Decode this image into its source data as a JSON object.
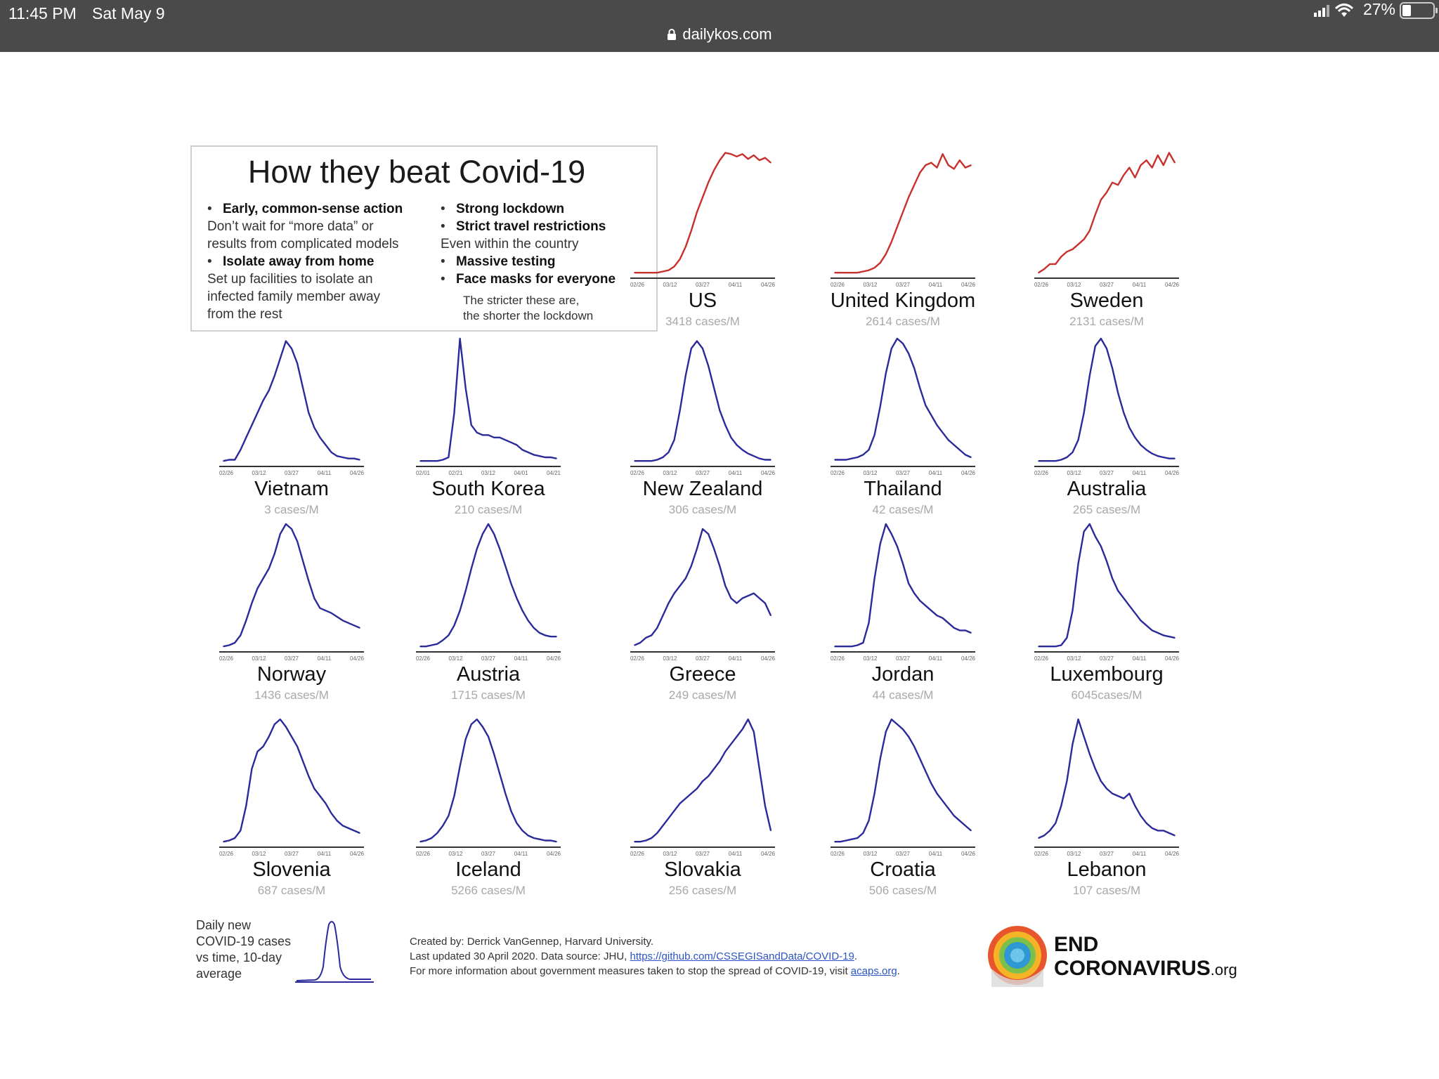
{
  "status_bar": {
    "time": "11:45 PM",
    "date": "Sat May 9",
    "url": "dailykos.com",
    "battery": "27%"
  },
  "infographic": {
    "title": "How they beat Covid-19",
    "tips": {
      "early_heading": "Early, common-sense action",
      "early_text_1": "Don’t wait for “more data” or",
      "early_text_2": "results from complicated models",
      "isolate_heading": "Isolate away from home",
      "isolate_text_1": "Set up facilities to isolate an",
      "isolate_text_2": "infected family member away",
      "isolate_text_3": "from the rest",
      "lockdown": "Strong lockdown",
      "travel": "Strict travel restrictions",
      "travel_text": "Even within the country",
      "testing": "Massive testing",
      "masks": "Face masks for everyone",
      "stricter_1": "The stricter these are,",
      "stricter_2": "the shorter the lockdown"
    },
    "legend": {
      "line1": "Daily new",
      "line2": "COVID-19 cases",
      "line3": "vs time, 10-day",
      "line4": "average"
    },
    "credits": {
      "line1": "Created by: Derrick VanGennep, Harvard University.",
      "line2_prefix": "Last updated 30 April 2020. Data source: JHU, ",
      "line2_link": "https://github.com/CSSEGISandData/COVID-19",
      "line2_suffix": ".",
      "line3_prefix": "For more information about government measures taken to stop the spread of COVID-19, visit ",
      "line3_link": "acaps.org",
      "line3_suffix": "."
    },
    "logo": {
      "line1": "END",
      "line2": "CORONAVIRUS",
      "suffix": ".org"
    },
    "colors": {
      "rising": "#c8302c",
      "beaten": "#2b2a9a"
    }
  },
  "chart_data": [
    {
      "type": "line",
      "name_label": "US",
      "cases": "3418 cases/M",
      "color": "red",
      "ticks": [
        "02/26",
        "03/12",
        "03/27",
        "04/11",
        "04/26"
      ],
      "values": [
        1,
        1,
        1,
        1,
        1,
        2,
        3,
        6,
        12,
        22,
        35,
        50,
        62,
        74,
        84,
        92,
        98,
        97,
        95,
        97,
        93,
        96,
        92,
        94,
        90
      ]
    },
    {
      "type": "line",
      "name_label": "United Kingdom",
      "cases": "2614 cases/M",
      "color": "red",
      "ticks": [
        "02/26",
        "03/12",
        "03/27",
        "04/11",
        "04/26"
      ],
      "values": [
        1,
        1,
        1,
        1,
        1,
        2,
        3,
        5,
        9,
        16,
        26,
        38,
        50,
        62,
        72,
        82,
        88,
        90,
        86,
        97,
        88,
        85,
        92,
        86,
        88
      ]
    },
    {
      "type": "line",
      "name_label": "Sweden",
      "cases": "2131 cases/M",
      "color": "red",
      "ticks": [
        "02/26",
        "03/12",
        "03/27",
        "04/11",
        "04/26"
      ],
      "values": [
        1,
        4,
        8,
        8,
        14,
        18,
        20,
        24,
        28,
        35,
        48,
        60,
        66,
        74,
        72,
        80,
        86,
        78,
        88,
        92,
        86,
        96,
        88,
        98,
        90
      ]
    },
    {
      "type": "line",
      "name_label": "Vietnam",
      "cases": "3 cases/M",
      "color": "blue",
      "ticks": [
        "02/26",
        "03/12",
        "03/27",
        "04/11",
        "04/26"
      ],
      "values": [
        1,
        2,
        2,
        10,
        20,
        30,
        40,
        50,
        58,
        70,
        84,
        98,
        92,
        80,
        60,
        40,
        28,
        20,
        14,
        8,
        5,
        4,
        3,
        3,
        2
      ]
    },
    {
      "type": "line",
      "name_label": "South Korea",
      "cases": "210 cases/M",
      "color": "blue",
      "ticks": [
        "02/01",
        "02/21",
        "03/12",
        "04/01",
        "04/21"
      ],
      "values": [
        1,
        1,
        1,
        1,
        2,
        4,
        40,
        100,
        60,
        30,
        24,
        22,
        22,
        20,
        20,
        18,
        16,
        14,
        10,
        8,
        6,
        5,
        4,
        4,
        3
      ]
    },
    {
      "type": "line",
      "name_label": "New Zealand",
      "cases": "306 cases/M",
      "color": "blue",
      "ticks": [
        "02/26",
        "03/12",
        "03/27",
        "04/11",
        "04/26"
      ],
      "values": [
        1,
        1,
        1,
        1,
        2,
        4,
        8,
        18,
        42,
        70,
        92,
        98,
        92,
        78,
        60,
        42,
        30,
        20,
        14,
        10,
        7,
        5,
        3,
        2,
        2
      ]
    },
    {
      "type": "line",
      "name_label": "Thailand",
      "cases": "42 cases/M",
      "color": "blue",
      "ticks": [
        "02/26",
        "03/12",
        "03/27",
        "04/11",
        "04/26"
      ],
      "values": [
        2,
        2,
        2,
        3,
        4,
        6,
        10,
        22,
        45,
        72,
        92,
        100,
        96,
        88,
        76,
        60,
        46,
        38,
        30,
        24,
        18,
        14,
        10,
        6,
        4
      ]
    },
    {
      "type": "line",
      "name_label": "Australia",
      "cases": "265 cases/M",
      "color": "blue",
      "ticks": [
        "02/26",
        "03/12",
        "03/27",
        "04/11",
        "04/26"
      ],
      "values": [
        1,
        1,
        1,
        1,
        2,
        4,
        8,
        18,
        40,
        70,
        94,
        100,
        92,
        76,
        56,
        40,
        28,
        20,
        14,
        10,
        7,
        5,
        4,
        3,
        3
      ]
    },
    {
      "type": "line",
      "name_label": "Norway",
      "cases": "1436 cases/M",
      "color": "blue",
      "ticks": [
        "02/26",
        "03/12",
        "03/27",
        "04/11",
        "04/26"
      ],
      "values": [
        1,
        2,
        4,
        10,
        22,
        36,
        48,
        56,
        64,
        76,
        92,
        100,
        96,
        86,
        70,
        54,
        40,
        32,
        30,
        28,
        25,
        22,
        20,
        18,
        16
      ]
    },
    {
      "type": "line",
      "name_label": "Austria",
      "cases": "1715 cases/M",
      "color": "blue",
      "ticks": [
        "02/26",
        "03/12",
        "03/27",
        "04/11",
        "04/26"
      ],
      "values": [
        1,
        1,
        2,
        3,
        6,
        10,
        18,
        30,
        46,
        64,
        80,
        92,
        100,
        92,
        80,
        66,
        52,
        40,
        30,
        22,
        16,
        12,
        10,
        9,
        9
      ]
    },
    {
      "type": "line",
      "name_label": "Greece",
      "cases": "249 cases/M",
      "color": "blue",
      "ticks": [
        "02/26",
        "03/12",
        "03/27",
        "04/11",
        "04/26"
      ],
      "values": [
        2,
        4,
        8,
        10,
        16,
        26,
        36,
        44,
        50,
        56,
        66,
        80,
        96,
        92,
        80,
        66,
        50,
        40,
        36,
        40,
        42,
        44,
        40,
        36,
        26
      ]
    },
    {
      "type": "line",
      "name_label": "Jordan",
      "cases": "44 cases/M",
      "color": "blue",
      "ticks": [
        "02/26",
        "03/12",
        "03/27",
        "04/11",
        "04/26"
      ],
      "values": [
        1,
        1,
        1,
        1,
        2,
        4,
        20,
        56,
        84,
        100,
        92,
        82,
        68,
        52,
        44,
        38,
        34,
        30,
        26,
        24,
        20,
        16,
        14,
        14,
        12
      ]
    },
    {
      "type": "line",
      "name_label": "Luxembourg",
      "cases": "6045cases/M",
      "color": "blue",
      "ticks": [
        "02/26",
        "03/12",
        "03/27",
        "04/11",
        "04/26"
      ],
      "values": [
        1,
        1,
        1,
        1,
        2,
        8,
        30,
        68,
        94,
        100,
        90,
        82,
        70,
        56,
        46,
        40,
        34,
        28,
        22,
        18,
        14,
        12,
        10,
        9,
        8
      ]
    },
    {
      "type": "line",
      "name_label": "Slovenia",
      "cases": "687 cases/M",
      "color": "blue",
      "ticks": [
        "02/26",
        "03/12",
        "03/27",
        "04/11",
        "04/26"
      ],
      "values": [
        1,
        2,
        4,
        10,
        30,
        60,
        74,
        78,
        86,
        96,
        100,
        94,
        86,
        78,
        66,
        54,
        44,
        38,
        32,
        24,
        18,
        14,
        12,
        10,
        8
      ]
    },
    {
      "type": "line",
      "name_label": "Iceland",
      "cases": "5266 cases/M",
      "color": "blue",
      "ticks": [
        "02/26",
        "03/12",
        "03/27",
        "04/11",
        "04/26"
      ],
      "values": [
        1,
        2,
        4,
        8,
        14,
        22,
        38,
        62,
        84,
        96,
        100,
        94,
        86,
        72,
        56,
        40,
        26,
        16,
        10,
        6,
        4,
        3,
        2,
        2,
        1
      ]
    },
    {
      "type": "line",
      "name_label": "Slovakia",
      "cases": "256 cases/M",
      "color": "blue",
      "ticks": [
        "02/26",
        "03/12",
        "03/27",
        "04/11",
        "04/26"
      ],
      "values": [
        1,
        1,
        2,
        4,
        8,
        14,
        20,
        26,
        32,
        36,
        40,
        44,
        50,
        54,
        60,
        66,
        74,
        80,
        86,
        92,
        100,
        90,
        60,
        30,
        10
      ]
    },
    {
      "type": "line",
      "name_label": "Croatia",
      "cases": "506 cases/M",
      "color": "blue",
      "ticks": [
        "02/26",
        "03/12",
        "03/27",
        "04/11",
        "04/26"
      ],
      "values": [
        1,
        1,
        2,
        3,
        4,
        8,
        18,
        40,
        68,
        90,
        100,
        96,
        92,
        86,
        78,
        68,
        58,
        48,
        40,
        34,
        28,
        22,
        18,
        14,
        10
      ]
    },
    {
      "type": "line",
      "name_label": "Lebanon",
      "cases": "107 cases/M",
      "color": "blue",
      "ticks": [
        "02/26",
        "03/12",
        "03/27",
        "04/11",
        "04/26"
      ],
      "values": [
        4,
        6,
        10,
        16,
        30,
        50,
        80,
        100,
        86,
        72,
        60,
        50,
        44,
        40,
        38,
        36,
        40,
        30,
        22,
        16,
        12,
        10,
        10,
        8,
        6
      ]
    }
  ]
}
